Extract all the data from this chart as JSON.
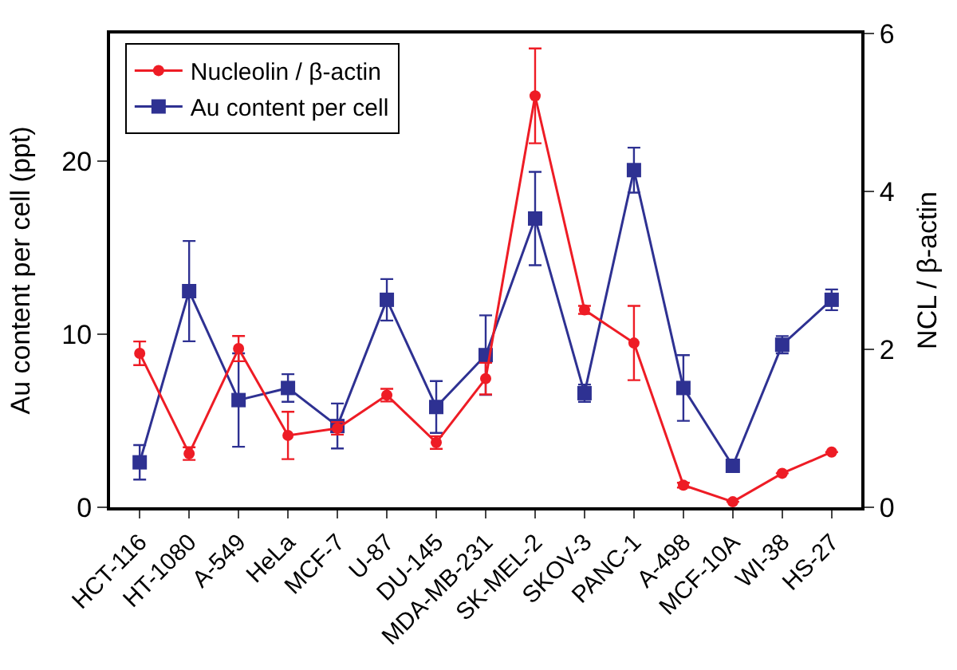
{
  "chart_data": {
    "type": "line",
    "ylabel": "Au content per cell (ppt)",
    "y2label": "NCL / β-actin",
    "categories": [
      "HCT-116",
      "HT-1080",
      "A-549",
      "HeLa",
      "MCF-7",
      "U-87",
      "DU-145",
      "MDA-MB-231",
      "SK-MEL-2",
      "SKOV-3",
      "PANC-1",
      "A-498",
      "MCF-10A",
      "WI-38",
      "HS-27"
    ],
    "series": [
      {
        "name": "Nucleolin / β-actin",
        "color": "#ee1c25",
        "marker": "circle",
        "axis": "y2",
        "values": [
          1.95,
          0.68,
          2.01,
          0.91,
          1.0,
          1.42,
          0.82,
          1.63,
          5.21,
          2.5,
          2.08,
          0.28,
          0.07,
          0.43,
          0.7
        ],
        "errors": [
          0.15,
          0.08,
          0.16,
          0.3,
          0.08,
          0.08,
          0.08,
          0.2,
          0.6,
          0.05,
          0.47,
          0.03,
          null,
          null,
          null
        ]
      },
      {
        "name": "Au content per cell",
        "color": "#2e3192",
        "marker": "square",
        "values": [
          2.6,
          12.5,
          6.2,
          6.9,
          4.7,
          12.0,
          5.8,
          8.8,
          16.7,
          6.6,
          19.5,
          6.9,
          2.4,
          9.4,
          12.0
        ],
        "errors": [
          1.0,
          2.9,
          2.7,
          0.8,
          1.3,
          1.2,
          1.5,
          2.3,
          2.7,
          0.5,
          1.3,
          1.9,
          null,
          0.5,
          0.6
        ]
      }
    ],
    "ylim": [
      0,
      27.4
    ],
    "yticks": [
      0,
      10,
      20
    ],
    "y2lim": [
      0,
      6
    ],
    "y2ticks": [
      0,
      2,
      4,
      6
    ],
    "legend": "top left",
    "line_style": "solid"
  }
}
